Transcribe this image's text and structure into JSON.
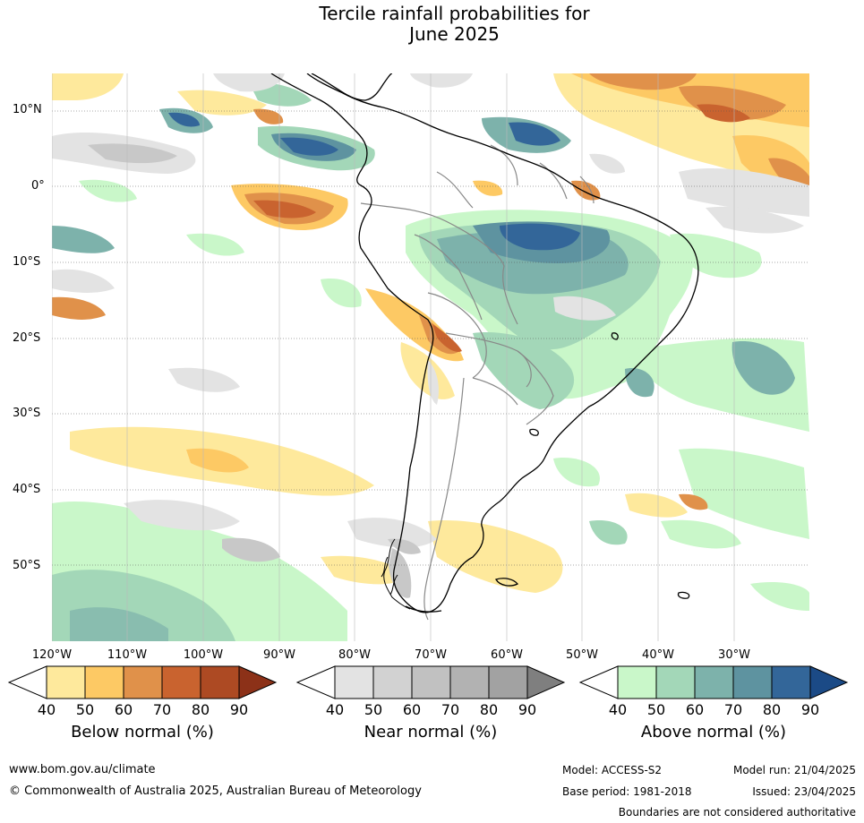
{
  "title_line1": "Tercile rainfall probabilities for",
  "title_line2": "June 2025",
  "lat_labels": [
    "10°N",
    "0°",
    "10°S",
    "20°S",
    "30°S",
    "40°S",
    "50°S"
  ],
  "lon_labels": [
    "120°W",
    "110°W",
    "100°W",
    "90°W",
    "80°W",
    "70°W",
    "60°W",
    "50°W",
    "40°W",
    "30°W"
  ],
  "colorbars": [
    {
      "title": "Below normal (%)",
      "ticks": [
        "40",
        "50",
        "60",
        "70",
        "80",
        "90"
      ],
      "colors": [
        "#ffffff",
        "#fee99c",
        "#fdc964",
        "#e0914a",
        "#c9632f",
        "#ad4a23",
        "#8c3118"
      ]
    },
    {
      "title": "Near normal (%)",
      "ticks": [
        "40",
        "50",
        "60",
        "70",
        "80",
        "90"
      ],
      "colors": [
        "#ffffff",
        "#e3e3e3",
        "#d2d2d2",
        "#c1c1c1",
        "#b2b2b2",
        "#a2a2a2",
        "#7f7f7f"
      ]
    },
    {
      "title": "Above normal (%)",
      "ticks": [
        "40",
        "50",
        "60",
        "70",
        "80",
        "90"
      ],
      "colors": [
        "#ffffff",
        "#c9f7c9",
        "#a3d7b8",
        "#7db2ab",
        "#5e93a0",
        "#336699",
        "#1b4a86"
      ]
    }
  ],
  "footer": {
    "url": "www.bom.gov.au/climate",
    "copyright": "© Commonwealth of Australia 2025, Australian Bureau of Meteorology",
    "model": "Model: ACCESS-S2",
    "base_period": "Base period: 1981-2018",
    "model_run": "Model run: 21/04/2025",
    "issued": "Issued: 23/04/2025",
    "boundaries_note": "Boundaries are not considered authoritative"
  },
  "map_colors": {
    "below_light": "#fee99c",
    "below_mid": "#fdc964",
    "below_dark": "#e0914a",
    "below_darker": "#c9632f",
    "near_light": "#e3e3e3",
    "near_mid": "#c8c8c8",
    "above_light": "#c9f7c9",
    "above_mid": "#a3d7b8",
    "above_dark": "#7db2ab",
    "above_darker": "#5e93a0",
    "above_darkest": "#336699"
  }
}
